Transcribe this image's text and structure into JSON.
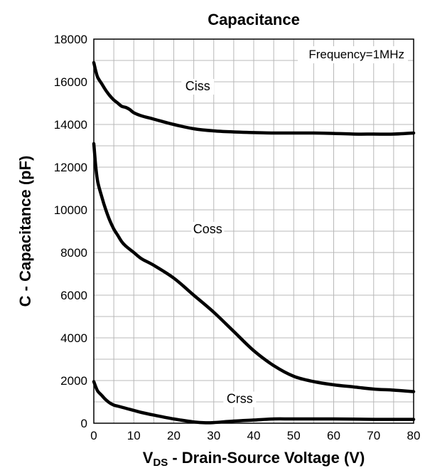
{
  "chart_data": {
    "type": "line",
    "title": "Capacitance",
    "ylabel": "C - Capacitance (pF)",
    "xlabel_main": "V",
    "xlabel_sub": "DS",
    "xlabel_rest": " - Drain-Source Voltage (V)",
    "xlim": [
      0,
      80
    ],
    "ylim": [
      0,
      18000
    ],
    "xticks": [
      0,
      10,
      20,
      30,
      40,
      50,
      60,
      70,
      80
    ],
    "yticks": [
      0,
      2000,
      4000,
      6000,
      8000,
      10000,
      12000,
      14000,
      16000,
      18000
    ],
    "xtick_labels": [
      "0",
      "10",
      "20",
      "30",
      "40",
      "50",
      "60",
      "70",
      "80"
    ],
    "ytick_labels": [
      "0",
      "2000",
      "4000",
      "6000",
      "8000",
      "10000",
      "12000",
      "14000",
      "16000",
      "18000"
    ],
    "grid": true,
    "annotation": "Frequency=1MHz",
    "series": [
      {
        "name": "Ciss",
        "x": [
          0,
          0.5,
          1,
          2,
          3,
          4,
          5,
          6,
          7,
          8,
          9,
          10,
          12,
          15,
          20,
          25,
          30,
          35,
          40,
          45,
          50,
          55,
          60,
          65,
          70,
          75,
          80
        ],
        "values": [
          16900,
          16500,
          16200,
          15900,
          15600,
          15350,
          15150,
          15000,
          14850,
          14800,
          14700,
          14550,
          14400,
          14250,
          14000,
          13800,
          13700,
          13650,
          13620,
          13600,
          13600,
          13600,
          13580,
          13550,
          13550,
          13550,
          13600
        ]
      },
      {
        "name": "Coss",
        "x": [
          0,
          0.5,
          1,
          2,
          3,
          4,
          5,
          6,
          7,
          8,
          10,
          12,
          15,
          20,
          25,
          30,
          35,
          40,
          45,
          50,
          55,
          60,
          65,
          70,
          75,
          80
        ],
        "values": [
          13100,
          12000,
          11300,
          10600,
          10000,
          9500,
          9100,
          8800,
          8500,
          8300,
          8000,
          7700,
          7400,
          6800,
          6000,
          5200,
          4300,
          3400,
          2700,
          2200,
          1950,
          1800,
          1700,
          1600,
          1550,
          1480
        ]
      },
      {
        "name": "Crss",
        "x": [
          0,
          0.5,
          1,
          2,
          3,
          4,
          5,
          6,
          7,
          8,
          10,
          12,
          15,
          20,
          25,
          28,
          30,
          35,
          40,
          45,
          50,
          60,
          70,
          80
        ],
        "values": [
          1950,
          1700,
          1500,
          1300,
          1100,
          950,
          850,
          800,
          750,
          700,
          600,
          500,
          380,
          200,
          60,
          20,
          30,
          100,
          150,
          200,
          200,
          200,
          180,
          180
        ]
      }
    ],
    "series_label_positions": [
      {
        "name": "Ciss",
        "x": 26,
        "y": 15600
      },
      {
        "name": "Coss",
        "x": 28.5,
        "y": 8900
      },
      {
        "name": "Crss",
        "x": 36.5,
        "y": 950
      }
    ]
  }
}
